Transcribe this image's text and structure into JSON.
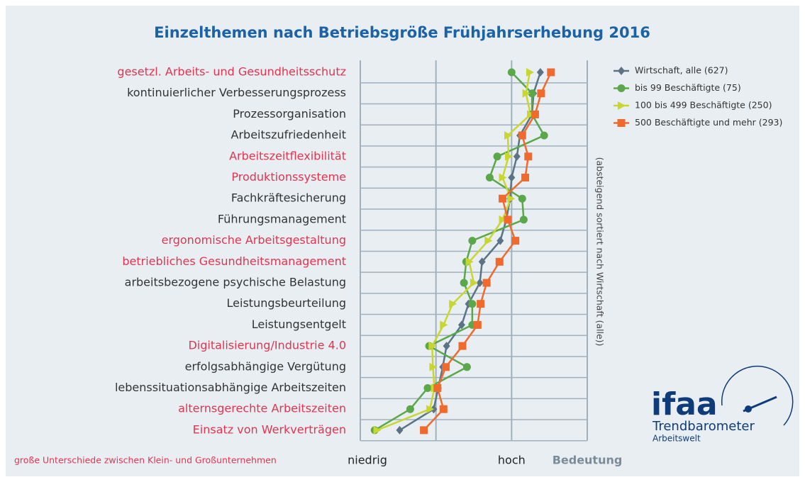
{
  "chart_data": {
    "type": "line",
    "title": "Einzelthemen nach Betriebsgröße Frühjahrserhebung 2016",
    "categories": [
      "gesetzl. Arbeits- und Gesundheitsschutz",
      "kontinuierlicher Verbesserungsprozess",
      "Prozessorganisation",
      "Arbeitszufriedenheit",
      "Arbeitszeitflexibilität",
      "Produktionssysteme",
      "Fachkräftesicherung",
      "Führungsmanagement",
      "ergonomische Arbeitsgestaltung",
      "betriebliches Gesundheitsmanagement",
      "arbeitsbezogene psychische Belastung",
      "Leistungsbeurteilung",
      "Leistungsentgelt",
      "Digitalisierung/Industrie 4.0",
      "erfolgsabhängige Vergütung",
      "lebenssituationsabhängige Arbeitszeiten",
      "alternsgerechte Arbeitszeiten",
      "Einsatz von Werkverträgen"
    ],
    "highlighted": [
      true,
      false,
      false,
      false,
      true,
      true,
      false,
      false,
      true,
      true,
      false,
      false,
      false,
      true,
      false,
      false,
      true,
      true
    ],
    "highlight_color": "#e2344f",
    "highlight_note": "große Unterschiede zwischen Klein- und Großunternehmen",
    "series": [
      {
        "name": "Wirtschaft, alle (627)",
        "color": "#5b7385",
        "marker": "diamond",
        "values": [
          2.38,
          2.29,
          2.27,
          2.11,
          2.07,
          2.0,
          1.98,
          1.93,
          1.85,
          1.61,
          1.58,
          1.43,
          1.34,
          1.14,
          1.09,
          1.03,
          0.97,
          0.52
        ]
      },
      {
        "name": "bis 99 Beschäftigte (75)",
        "color": "#5aa84a",
        "marker": "circle",
        "values": [
          2.0,
          2.27,
          2.27,
          2.43,
          1.81,
          1.71,
          2.14,
          2.16,
          1.48,
          1.4,
          1.37,
          1.48,
          1.48,
          0.91,
          1.41,
          0.89,
          0.66,
          0.19
        ]
      },
      {
        "name": "100 bis 499 Beschäftigte (250)",
        "color": "#c9d630",
        "marker": "triangle",
        "values": [
          2.24,
          2.19,
          2.25,
          1.95,
          1.96,
          1.88,
          1.99,
          1.88,
          1.69,
          1.44,
          1.5,
          1.22,
          1.1,
          0.95,
          0.96,
          0.98,
          0.92,
          0.22
        ]
      },
      {
        "name": "500 Beschäftigte und mehr (293)",
        "color": "#ef6a2c",
        "marker": "square",
        "values": [
          2.52,
          2.39,
          2.31,
          2.14,
          2.22,
          2.18,
          1.88,
          1.95,
          2.05,
          1.84,
          1.67,
          1.59,
          1.55,
          1.35,
          1.13,
          1.02,
          1.1,
          0.84
        ]
      }
    ],
    "xlim": [
      0,
      3
    ],
    "xticks": [
      {
        "value": 0,
        "label": "niedrig"
      },
      {
        "value": 2,
        "label": "hoch"
      }
    ],
    "grid_x": [
      0,
      1,
      2,
      3
    ],
    "xlabel": "Bedeutung",
    "side_note": "(absteigend sortiert nach Wirtschaft (alle))",
    "legend": "top-right"
  },
  "logo": {
    "name": "ifaa",
    "line1": "Trendbarometer",
    "line2": "Arbeitswelt"
  }
}
